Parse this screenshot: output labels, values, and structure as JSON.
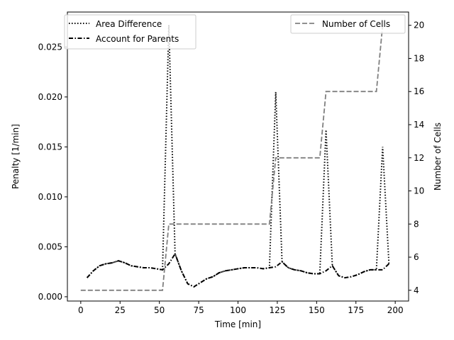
{
  "chart_data": {
    "type": "line",
    "xlabel": "Time [min]",
    "ylabel_left": "Penalty [1/min]",
    "ylabel_right": "Number of Cells",
    "xlim": [
      -8.5,
      208.5
    ],
    "ylim_left": [
      -0.00043,
      0.0285
    ],
    "ylim_right": [
      3.35,
      20.8
    ],
    "x_ticks": [
      0,
      25,
      50,
      75,
      100,
      125,
      150,
      175,
      200
    ],
    "y_left_ticks": [
      0.0,
      0.005,
      0.01,
      0.015,
      0.02,
      0.025
    ],
    "y_left_tick_labels": [
      "0.000",
      "0.005",
      "0.010",
      "0.015",
      "0.020",
      "0.025"
    ],
    "y_right_ticks": [
      4,
      6,
      8,
      10,
      12,
      14,
      16,
      18,
      20
    ],
    "legend_left": {
      "placement": "top-left",
      "entries": [
        "Area Difference",
        "Account for Parents"
      ]
    },
    "legend_right": {
      "placement": "top-right",
      "entries": [
        "Number of Cells"
      ]
    },
    "series": [
      {
        "name": "Area Difference",
        "axis": "left",
        "style": "dotted",
        "color": "#000000",
        "x": [
          4,
          8,
          12,
          16,
          20,
          24,
          28,
          32,
          36,
          40,
          44,
          48,
          52,
          56,
          60,
          64,
          68,
          72,
          76,
          80,
          84,
          88,
          92,
          96,
          100,
          104,
          108,
          112,
          116,
          120,
          124,
          128,
          132,
          136,
          140,
          144,
          148,
          152,
          156,
          160,
          164,
          168,
          172,
          176,
          180,
          184,
          188,
          192,
          196
        ],
        "y": [
          0.0019,
          0.0026,
          0.0031,
          0.0033,
          0.0034,
          0.0036,
          0.0034,
          0.0031,
          0.003,
          0.0029,
          0.0029,
          0.0028,
          0.0027,
          0.0272,
          0.0043,
          0.0026,
          0.0013,
          0.001,
          0.0014,
          0.0018,
          0.002,
          0.0024,
          0.0026,
          0.0027,
          0.0028,
          0.0029,
          0.0029,
          0.0029,
          0.0028,
          0.0029,
          0.0205,
          0.0035,
          0.0029,
          0.0027,
          0.0026,
          0.0024,
          0.0023,
          0.0023,
          0.0167,
          0.0031,
          0.0021,
          0.0019,
          0.002,
          0.0022,
          0.0025,
          0.0027,
          0.0027,
          0.015,
          0.0033
        ]
      },
      {
        "name": "Account for Parents",
        "axis": "left",
        "style": "dashdot",
        "color": "#000000",
        "x": [
          4,
          8,
          12,
          16,
          20,
          24,
          28,
          32,
          36,
          40,
          44,
          48,
          52,
          56,
          60,
          64,
          68,
          72,
          76,
          80,
          84,
          88,
          92,
          96,
          100,
          104,
          108,
          112,
          116,
          120,
          124,
          128,
          132,
          136,
          140,
          144,
          148,
          152,
          156,
          160,
          164,
          168,
          172,
          176,
          180,
          184,
          188,
          192,
          196
        ],
        "y": [
          0.0019,
          0.0026,
          0.0031,
          0.0033,
          0.0034,
          0.0036,
          0.0034,
          0.0031,
          0.003,
          0.0029,
          0.0029,
          0.0028,
          0.0027,
          0.0033,
          0.0043,
          0.0026,
          0.0013,
          0.001,
          0.0014,
          0.0018,
          0.002,
          0.0024,
          0.0026,
          0.0027,
          0.0028,
          0.0029,
          0.0029,
          0.0029,
          0.0028,
          0.0029,
          0.003,
          0.0035,
          0.0029,
          0.0027,
          0.0026,
          0.0024,
          0.0023,
          0.0023,
          0.0026,
          0.0031,
          0.0021,
          0.0019,
          0.002,
          0.0022,
          0.0025,
          0.0027,
          0.0027,
          0.0027,
          0.0033
        ]
      },
      {
        "name": "Number of Cells",
        "axis": "right",
        "style": "dashed",
        "color": "#808080",
        "x": [
          0,
          52,
          56,
          120,
          124,
          152,
          156,
          188,
          192
        ],
        "y": [
          4,
          4,
          8,
          8,
          12,
          12,
          16,
          16,
          20
        ]
      }
    ]
  }
}
